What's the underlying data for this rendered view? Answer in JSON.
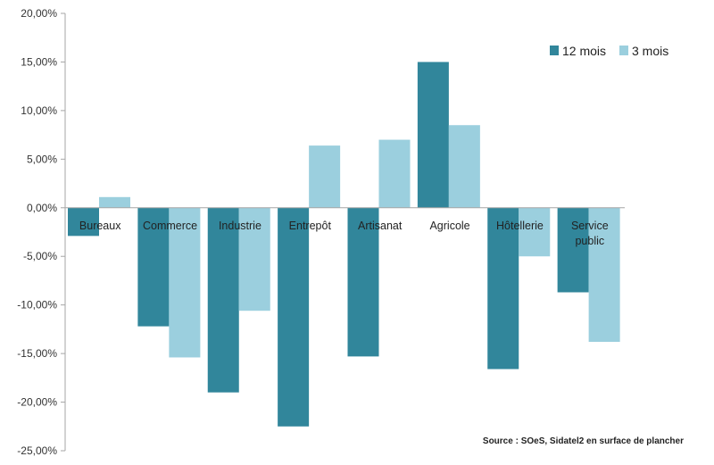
{
  "chart_data": {
    "type": "bar",
    "title": "",
    "xlabel": "",
    "ylabel": "",
    "ylim": [
      -25,
      20
    ],
    "ytick_step": 5,
    "ytick_labels": [
      "20,00%",
      "15,00%",
      "10,00%",
      "5,00%",
      "0,00%",
      "-5,00%",
      "-10,00%",
      "-15,00%",
      "-20,00%",
      "-25,00%"
    ],
    "grid": false,
    "legend_position": "top-right",
    "categories": [
      [
        "Bureaux"
      ],
      [
        "Commerce"
      ],
      [
        "Industrie"
      ],
      [
        "Entrepôt"
      ],
      [
        "Artisanat"
      ],
      [
        "Agricole"
      ],
      [
        "Hôtellerie"
      ],
      [
        "Service",
        "public"
      ]
    ],
    "series": [
      {
        "name": "12 mois",
        "color": "#31869b",
        "values": [
          -2.9,
          -12.2,
          -19.0,
          -22.5,
          -15.3,
          15.0,
          -16.6,
          -8.7
        ]
      },
      {
        "name": "3 mois",
        "color": "#9bcfde",
        "values": [
          1.1,
          -15.4,
          -10.6,
          6.4,
          7.0,
          8.5,
          -5.0,
          -13.8
        ]
      }
    ],
    "source": "Source : SOeS, Sidatel2 en surface de plancher"
  }
}
